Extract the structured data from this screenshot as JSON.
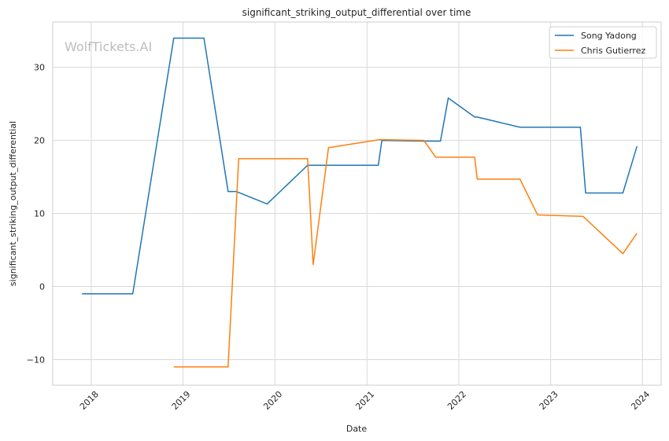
{
  "chart_data": {
    "type": "line",
    "title": "significant_striking_output_differential over time",
    "xlabel": "Date",
    "ylabel": "significant_striking_output_differential",
    "watermark": "WolfTickets.AI",
    "xlim": [
      "2017-08-01",
      "2024-03-15"
    ],
    "ylim": [
      -13.5,
      36.2
    ],
    "x_ticks": [
      "2018-01-01",
      "2019-01-01",
      "2020-01-01",
      "2021-01-01",
      "2022-01-01",
      "2023-01-01",
      "2024-01-01"
    ],
    "x_tick_labels": [
      "2018",
      "2019",
      "2020",
      "2021",
      "2022",
      "2023",
      "2024"
    ],
    "y_ticks": [
      -10,
      0,
      10,
      20,
      30
    ],
    "y_tick_labels": [
      "−10",
      "0",
      "10",
      "20",
      "30"
    ],
    "grid": true,
    "legend_position": "top-right",
    "series": [
      {
        "name": "Song Yadong",
        "color": "#1f77b4",
        "points": [
          [
            "2017-11-25",
            -1.0
          ],
          [
            "2018-06-15",
            -1.0
          ],
          [
            "2018-11-25",
            34.0
          ],
          [
            "2019-03-25",
            34.0
          ],
          [
            "2019-06-29",
            13.0
          ],
          [
            "2019-08-01",
            13.0
          ],
          [
            "2019-12-01",
            11.3
          ],
          [
            "2020-05-10",
            16.6
          ],
          [
            "2021-02-15",
            16.6
          ],
          [
            "2021-03-01",
            20.0
          ],
          [
            "2021-08-15",
            19.9
          ],
          [
            "2021-10-20",
            19.9
          ],
          [
            "2021-11-20",
            25.8
          ],
          [
            "2022-03-05",
            23.2
          ],
          [
            "2022-03-15",
            23.2
          ],
          [
            "2022-09-01",
            21.8
          ],
          [
            "2023-04-29",
            21.8
          ],
          [
            "2023-05-20",
            12.8
          ],
          [
            "2023-10-15",
            12.8
          ],
          [
            "2023-12-10",
            19.2
          ]
        ]
      },
      {
        "name": "Chris Gutierrez",
        "color": "#ff7f0e",
        "points": [
          [
            "2018-11-25",
            -11.0
          ],
          [
            "2019-06-29",
            -11.0
          ],
          [
            "2019-08-10",
            17.5
          ],
          [
            "2020-05-10",
            17.5
          ],
          [
            "2020-06-01",
            3.0
          ],
          [
            "2020-08-01",
            19.0
          ],
          [
            "2021-02-20",
            20.1
          ],
          [
            "2021-08-15",
            20.0
          ],
          [
            "2021-10-01",
            17.7
          ],
          [
            "2022-03-05",
            17.7
          ],
          [
            "2022-03-15",
            14.7
          ],
          [
            "2022-09-01",
            14.7
          ],
          [
            "2022-11-10",
            9.8
          ],
          [
            "2023-05-10",
            9.6
          ],
          [
            "2023-10-15",
            4.5
          ],
          [
            "2023-12-10",
            7.3
          ]
        ]
      }
    ]
  }
}
